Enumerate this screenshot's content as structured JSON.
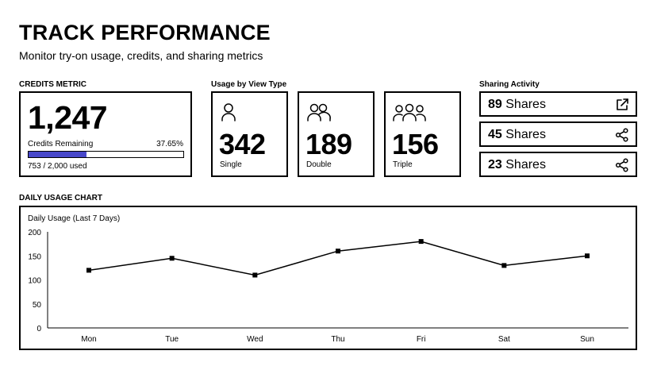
{
  "header": {
    "title": "TRACK PERFORMANCE",
    "subtitle": "Monitor try-on usage, credits, and sharing metrics"
  },
  "credits": {
    "section_label": "CREDITS METRIC",
    "value": "1,247",
    "remaining_label": "Credits Remaining",
    "percent_label": "37.65%",
    "used_fraction": 0.3765,
    "used_label": "753 / 2,000 used"
  },
  "usage": {
    "section_label": "Usage by View Type",
    "cards": [
      {
        "icon": "single-person-icon",
        "value": "342",
        "label": "Single"
      },
      {
        "icon": "two-people-icon",
        "value": "189",
        "label": "Double"
      },
      {
        "icon": "three-people-icon",
        "value": "156",
        "label": "Triple"
      }
    ]
  },
  "sharing": {
    "section_label": "Sharing Activity",
    "items": [
      {
        "count": "89",
        "unit": "Shares",
        "icon": "external-link-icon"
      },
      {
        "count": "45",
        "unit": "Shares",
        "icon": "share-icon"
      },
      {
        "count": "23",
        "unit": "Shares",
        "icon": "share-icon"
      }
    ]
  },
  "chart_section_label": "DAILY USAGE CHART",
  "chart_data": {
    "type": "line",
    "title": "Daily Usage (Last 7 Days)",
    "xlabel": "",
    "ylabel": "",
    "categories": [
      "Mon",
      "Tue",
      "Wed",
      "Thu",
      "Fri",
      "Sat",
      "Sun"
    ],
    "values": [
      120,
      145,
      110,
      160,
      180,
      130,
      150
    ],
    "ylim": [
      0,
      200
    ],
    "yticks": [
      0,
      50,
      100,
      150,
      200
    ],
    "grid": false,
    "line_color": "#000000",
    "marker": "square"
  },
  "colors": {
    "progress_fill": "#4747c9",
    "border": "#000000",
    "background": "#ffffff"
  }
}
